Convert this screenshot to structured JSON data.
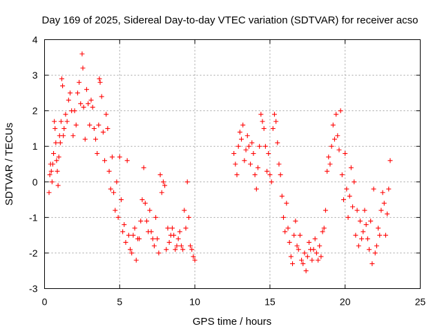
{
  "chart_data": {
    "type": "scatter",
    "title": "Day 169 of 2025, Sidereal Day-to-day VTEC variation (SDTVAR) for receiver acso",
    "xlabel": "GPS time / hours",
    "ylabel": "SDTVAR / TECUs",
    "xlim": [
      0,
      25
    ],
    "ylim": [
      -3,
      4
    ],
    "xticks": [
      0,
      5,
      10,
      15,
      20,
      25
    ],
    "yticks": [
      -3,
      -2,
      -1,
      0,
      1,
      2,
      3,
      4
    ],
    "grid": true,
    "marker": "plus",
    "series": [
      {
        "name": "SDTVAR",
        "color": "#ff0000",
        "points": [
          [
            0.3,
            -0.3
          ],
          [
            0.35,
            0.2
          ],
          [
            0.4,
            0.5
          ],
          [
            0.45,
            0.3
          ],
          [
            0.5,
            0.0
          ],
          [
            0.55,
            0.5
          ],
          [
            0.6,
            0.8
          ],
          [
            0.65,
            1.7
          ],
          [
            0.7,
            1.5
          ],
          [
            0.75,
            1.1
          ],
          [
            0.8,
            0.6
          ],
          [
            0.85,
            0.3
          ],
          [
            0.9,
            -0.1
          ],
          [
            0.95,
            0.7
          ],
          [
            1.0,
            1.3
          ],
          [
            1.05,
            1.1
          ],
          [
            1.1,
            1.7
          ],
          [
            1.15,
            2.9
          ],
          [
            1.2,
            2.7
          ],
          [
            1.25,
            1.3
          ],
          [
            1.3,
            1.5
          ],
          [
            1.4,
            1.9
          ],
          [
            1.5,
            1.7
          ],
          [
            1.6,
            2.3
          ],
          [
            1.7,
            2.5
          ],
          [
            1.8,
            2.0
          ],
          [
            1.9,
            1.3
          ],
          [
            2.0,
            2.0
          ],
          [
            2.1,
            1.6
          ],
          [
            2.2,
            2.5
          ],
          [
            2.3,
            2.8
          ],
          [
            2.4,
            2.2
          ],
          [
            2.5,
            3.6
          ],
          [
            2.55,
            3.2
          ],
          [
            2.6,
            2.1
          ],
          [
            2.7,
            1.2
          ],
          [
            2.8,
            2.6
          ],
          [
            2.9,
            2.2
          ],
          [
            3.0,
            1.6
          ],
          [
            3.1,
            2.3
          ],
          [
            3.2,
            2.1
          ],
          [
            3.3,
            1.5
          ],
          [
            3.4,
            1.2
          ],
          [
            3.5,
            0.8
          ],
          [
            3.6,
            1.6
          ],
          [
            3.65,
            2.9
          ],
          [
            3.7,
            2.8
          ],
          [
            3.8,
            2.4
          ],
          [
            3.9,
            1.4
          ],
          [
            4.0,
            0.6
          ],
          [
            4.1,
            1.9
          ],
          [
            4.2,
            1.5
          ],
          [
            4.3,
            0.3
          ],
          [
            4.4,
            -0.2
          ],
          [
            4.5,
            0.7
          ],
          [
            4.6,
            -0.3
          ],
          [
            4.7,
            -0.8
          ],
          [
            4.8,
            0.0
          ],
          [
            4.9,
            -1.0
          ],
          [
            5.0,
            0.7
          ],
          [
            5.1,
            -0.5
          ],
          [
            5.2,
            -1.4
          ],
          [
            5.3,
            -1.2
          ],
          [
            5.4,
            -1.7
          ],
          [
            5.5,
            0.6
          ],
          [
            5.6,
            -1.5
          ],
          [
            5.7,
            -1.9
          ],
          [
            5.8,
            -2.0
          ],
          [
            5.9,
            -1.5
          ],
          [
            6.0,
            -1.3
          ],
          [
            6.1,
            -2.2
          ],
          [
            6.2,
            -1.6
          ],
          [
            6.3,
            -1.6
          ],
          [
            6.4,
            -1.1
          ],
          [
            6.5,
            -0.5
          ],
          [
            6.6,
            0.4
          ],
          [
            6.7,
            -0.6
          ],
          [
            6.8,
            -1.1
          ],
          [
            6.9,
            -1.4
          ],
          [
            7.0,
            -0.8
          ],
          [
            7.1,
            -1.4
          ],
          [
            7.2,
            -1.6
          ],
          [
            7.3,
            -1.8
          ],
          [
            7.4,
            -1.0
          ],
          [
            7.5,
            -1.6
          ],
          [
            7.6,
            -2.0
          ],
          [
            7.7,
            0.2
          ],
          [
            7.8,
            -0.3
          ],
          [
            7.9,
            0.0
          ],
          [
            8.0,
            -0.1
          ],
          [
            8.1,
            -1.9
          ],
          [
            8.2,
            -1.3
          ],
          [
            8.3,
            -1.7
          ],
          [
            8.4,
            -1.5
          ],
          [
            8.5,
            -1.3
          ],
          [
            8.6,
            -1.5
          ],
          [
            8.7,
            -1.9
          ],
          [
            8.8,
            -1.8
          ],
          [
            8.9,
            -1.6
          ],
          [
            9.0,
            -1.4
          ],
          [
            9.1,
            -1.8
          ],
          [
            9.2,
            -1.9
          ],
          [
            9.3,
            -0.8
          ],
          [
            9.4,
            -1.3
          ],
          [
            9.5,
            0.0
          ],
          [
            9.6,
            -1.0
          ],
          [
            9.7,
            -1.8
          ],
          [
            9.8,
            -1.9
          ],
          [
            9.9,
            -2.1
          ],
          [
            10.0,
            -2.2
          ],
          [
            12.6,
            0.8
          ],
          [
            12.7,
            0.5
          ],
          [
            12.8,
            0.2
          ],
          [
            12.9,
            1.0
          ],
          [
            13.0,
            1.4
          ],
          [
            13.1,
            1.2
          ],
          [
            13.2,
            1.6
          ],
          [
            13.3,
            0.6
          ],
          [
            13.4,
            0.9
          ],
          [
            13.5,
            1.3
          ],
          [
            13.6,
            1.0
          ],
          [
            13.7,
            0.5
          ],
          [
            13.8,
            1.1
          ],
          [
            13.9,
            0.8
          ],
          [
            14.0,
            0.2
          ],
          [
            14.1,
            -0.2
          ],
          [
            14.2,
            0.4
          ],
          [
            14.3,
            1.0
          ],
          [
            14.4,
            1.9
          ],
          [
            14.5,
            1.7
          ],
          [
            14.6,
            1.5
          ],
          [
            14.7,
            1.0
          ],
          [
            14.8,
            0.3
          ],
          [
            14.9,
            0.8
          ],
          [
            15.0,
            0.2
          ],
          [
            15.1,
            0.0
          ],
          [
            15.2,
            1.5
          ],
          [
            15.3,
            1.9
          ],
          [
            15.4,
            1.7
          ],
          [
            15.5,
            1.1
          ],
          [
            15.6,
            0.5
          ],
          [
            15.7,
            0.2
          ],
          [
            15.8,
            -0.4
          ],
          [
            15.9,
            -1.0
          ],
          [
            16.0,
            -1.4
          ],
          [
            16.1,
            -0.6
          ],
          [
            16.2,
            -1.3
          ],
          [
            16.3,
            -1.7
          ],
          [
            16.4,
            -2.1
          ],
          [
            16.5,
            -2.3
          ],
          [
            16.6,
            -1.5
          ],
          [
            16.7,
            -1.1
          ],
          [
            16.8,
            -1.8
          ],
          [
            16.9,
            -1.9
          ],
          [
            17.0,
            -1.5
          ],
          [
            17.1,
            -2.2
          ],
          [
            17.2,
            -2.3
          ],
          [
            17.3,
            -2.0
          ],
          [
            17.4,
            -2.5
          ],
          [
            17.5,
            -2.1
          ],
          [
            17.6,
            -1.7
          ],
          [
            17.7,
            -1.9
          ],
          [
            17.8,
            -2.2
          ],
          [
            17.9,
            -1.9
          ],
          [
            18.0,
            -1.6
          ],
          [
            18.1,
            -2.0
          ],
          [
            18.2,
            -2.2
          ],
          [
            18.3,
            -1.8
          ],
          [
            18.4,
            -2.1
          ],
          [
            18.5,
            -1.4
          ],
          [
            18.6,
            -1.3
          ],
          [
            18.7,
            -0.8
          ],
          [
            18.8,
            0.3
          ],
          [
            18.9,
            0.7
          ],
          [
            19.0,
            0.5
          ],
          [
            19.1,
            1.0
          ],
          [
            19.2,
            1.6
          ],
          [
            19.3,
            1.2
          ],
          [
            19.4,
            1.9
          ],
          [
            19.5,
            1.3
          ],
          [
            19.6,
            0.9
          ],
          [
            19.7,
            2.0
          ],
          [
            19.8,
            0.2
          ],
          [
            19.9,
            -0.5
          ],
          [
            20.0,
            0.8
          ],
          [
            20.1,
            -0.2
          ],
          [
            20.2,
            -1.0
          ],
          [
            20.3,
            -0.4
          ],
          [
            20.4,
            0.4
          ],
          [
            20.5,
            -0.7
          ],
          [
            20.6,
            0.0
          ],
          [
            20.7,
            -1.5
          ],
          [
            20.8,
            -0.8
          ],
          [
            20.9,
            -1.8
          ],
          [
            21.0,
            -1.1
          ],
          [
            21.1,
            -1.6
          ],
          [
            21.2,
            -1.4
          ],
          [
            21.3,
            -0.8
          ],
          [
            21.4,
            -1.2
          ],
          [
            21.5,
            -1.6
          ],
          [
            21.6,
            -1.9
          ],
          [
            21.7,
            -1.1
          ],
          [
            21.8,
            -2.3
          ],
          [
            21.9,
            -0.2
          ],
          [
            22.0,
            -2.0
          ],
          [
            22.1,
            -1.8
          ],
          [
            22.2,
            -1.3
          ],
          [
            22.3,
            -1.5
          ],
          [
            22.4,
            -0.8
          ],
          [
            22.5,
            -0.3
          ],
          [
            22.6,
            -0.6
          ],
          [
            22.7,
            -1.5
          ],
          [
            22.8,
            -0.9
          ],
          [
            22.9,
            -0.2
          ],
          [
            23.0,
            0.6
          ]
        ]
      }
    ]
  }
}
